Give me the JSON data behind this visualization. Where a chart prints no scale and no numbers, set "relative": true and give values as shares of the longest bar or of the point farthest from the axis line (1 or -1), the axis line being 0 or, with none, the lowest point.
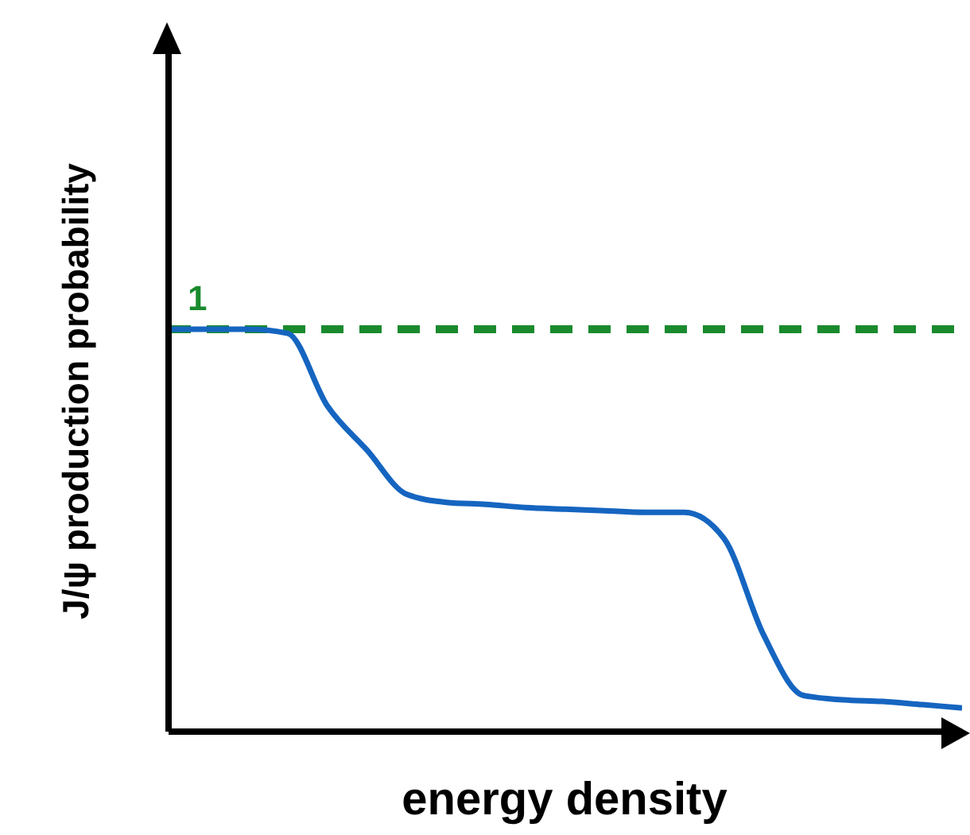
{
  "chart_data": {
    "type": "line",
    "relative": true,
    "xlabel": "energy density",
    "ylabel": "J/ψ production probability",
    "categories": [
      null,
      null,
      null,
      null,
      null,
      null,
      null,
      null,
      null,
      null,
      null,
      null,
      null,
      null,
      null,
      null,
      null,
      null,
      null,
      null,
      null
    ],
    "series": [
      {
        "color": "#1565c0",
        "values": [
          1.0,
          1.0,
          1.0,
          0.99,
          0.81,
          0.7,
          0.59,
          0.57,
          0.565,
          0.557,
          0.553,
          0.549,
          0.545,
          0.545,
          0.48,
          0.24,
          0.09,
          0.079,
          0.075,
          0.067,
          0.059
        ]
      }
    ],
    "ref_lines": [
      {
        "axis": "y",
        "value": 1,
        "label": "1",
        "color": "#1a8a2e",
        "line_style": "dashed"
      }
    ],
    "grid": false,
    "legend": false,
    "marker": "none",
    "line_style": "solid"
  }
}
